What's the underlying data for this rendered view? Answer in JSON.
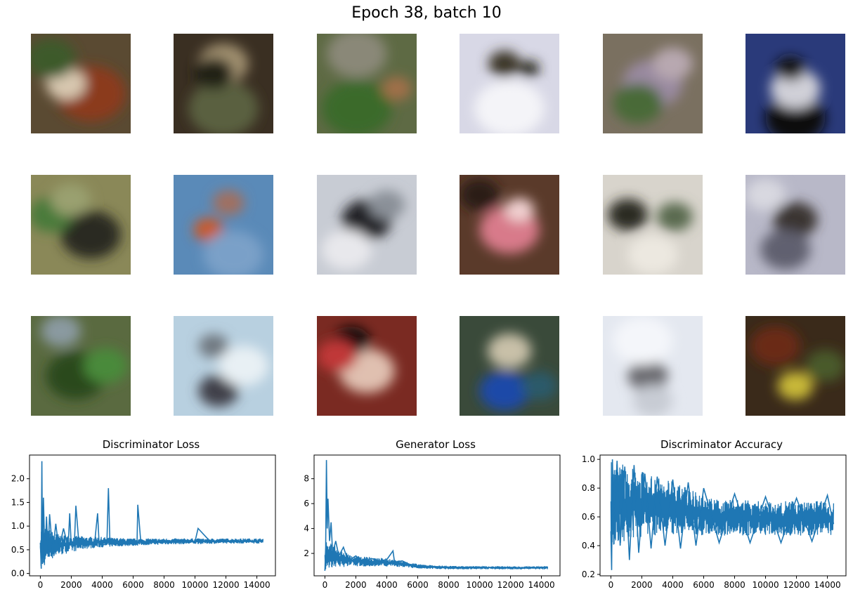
{
  "title": "Epoch 38, batch 10",
  "samples": {
    "rows": 3,
    "cols": 6,
    "tiles": [
      {
        "bg": "#5a4a32",
        "blobs": [
          [
            "#8b3a1a",
            0.6,
            0.6,
            0.35
          ],
          [
            "#d8c8b0",
            0.35,
            0.5,
            0.2
          ],
          [
            "#3d5a2a",
            0.2,
            0.25,
            0.25
          ]
        ]
      },
      {
        "bg": "#3a2f22",
        "blobs": [
          [
            "#5a6040",
            0.5,
            0.75,
            0.35
          ],
          [
            "#a09070",
            0.5,
            0.3,
            0.25
          ],
          [
            "#202018",
            0.4,
            0.4,
            0.2
          ]
        ]
      },
      {
        "bg": "#5e6a44",
        "blobs": [
          [
            "#3a6a2a",
            0.4,
            0.75,
            0.35
          ],
          [
            "#8a8878",
            0.4,
            0.2,
            0.3
          ],
          [
            "#a07048",
            0.8,
            0.55,
            0.15
          ]
        ]
      },
      {
        "bg": "#d8d8e6",
        "blobs": [
          [
            "#f4f4f8",
            0.5,
            0.75,
            0.35
          ],
          [
            "#3a3428",
            0.45,
            0.3,
            0.16
          ],
          [
            "#202018",
            0.7,
            0.35,
            0.1
          ]
        ]
      },
      {
        "bg": "#7a7060",
        "blobs": [
          [
            "#9a8aa0",
            0.5,
            0.5,
            0.3
          ],
          [
            "#4a6a38",
            0.35,
            0.7,
            0.25
          ],
          [
            "#b8a8b0",
            0.7,
            0.3,
            0.2
          ]
        ]
      },
      {
        "bg": "#2a3a7a",
        "blobs": [
          [
            "#101010",
            0.5,
            0.85,
            0.3
          ],
          [
            "#d0d0d8",
            0.5,
            0.55,
            0.25
          ],
          [
            "#181818",
            0.45,
            0.35,
            0.15
          ]
        ]
      },
      {
        "bg": "#8a8858",
        "blobs": [
          [
            "#2a2a20",
            0.6,
            0.6,
            0.3
          ],
          [
            "#4a7a3a",
            0.2,
            0.4,
            0.22
          ],
          [
            "#9aa070",
            0.4,
            0.25,
            0.2
          ]
        ]
      },
      {
        "bg": "#5a8ab8",
        "blobs": [
          [
            "#c85a2a",
            0.35,
            0.55,
            0.15
          ],
          [
            "#a07060",
            0.55,
            0.28,
            0.16
          ],
          [
            "#7aa0c8",
            0.6,
            0.8,
            0.3
          ]
        ]
      },
      {
        "bg": "#c8ccd4",
        "blobs": [
          [
            "#202428",
            0.5,
            0.45,
            0.25
          ],
          [
            "#e8e8ec",
            0.3,
            0.75,
            0.25
          ],
          [
            "#8a9098",
            0.7,
            0.3,
            0.18
          ]
        ]
      },
      {
        "bg": "#5a3a2a",
        "blobs": [
          [
            "#d87a8a",
            0.5,
            0.55,
            0.3
          ],
          [
            "#f0d0d0",
            0.6,
            0.35,
            0.15
          ],
          [
            "#2a1a14",
            0.2,
            0.2,
            0.2
          ]
        ]
      },
      {
        "bg": "#d8d4cc",
        "blobs": [
          [
            "#2a2a22",
            0.25,
            0.4,
            0.2
          ],
          [
            "#5a6a50",
            0.72,
            0.42,
            0.18
          ],
          [
            "#ece8e0",
            0.5,
            0.8,
            0.25
          ]
        ]
      },
      {
        "bg": "#b8b8c8",
        "blobs": [
          [
            "#3a3430",
            0.5,
            0.45,
            0.22
          ],
          [
            "#606070",
            0.4,
            0.75,
            0.25
          ],
          [
            "#d8d8e0",
            0.2,
            0.2,
            0.2
          ]
        ]
      },
      {
        "bg": "#5a6a40",
        "blobs": [
          [
            "#2a4a1a",
            0.45,
            0.6,
            0.3
          ],
          [
            "#8a9aa0",
            0.3,
            0.15,
            0.2
          ],
          [
            "#4a8a3a",
            0.75,
            0.5,
            0.22
          ]
        ]
      },
      {
        "bg": "#b8d0e0",
        "blobs": [
          [
            "#404048",
            0.45,
            0.75,
            0.2
          ],
          [
            "#707880",
            0.4,
            0.3,
            0.15
          ],
          [
            "#e8f0f4",
            0.7,
            0.5,
            0.25
          ]
        ]
      },
      {
        "bg": "#7a2a22",
        "blobs": [
          [
            "#e0c0b0",
            0.5,
            0.55,
            0.28
          ],
          [
            "#101010",
            0.35,
            0.25,
            0.18
          ],
          [
            "#c03838",
            0.2,
            0.4,
            0.2
          ]
        ]
      },
      {
        "bg": "#3a4a3a",
        "blobs": [
          [
            "#1a4aa8",
            0.45,
            0.75,
            0.25
          ],
          [
            "#c8c0a8",
            0.5,
            0.35,
            0.22
          ],
          [
            "#2a5a6a",
            0.8,
            0.7,
            0.18
          ]
        ]
      },
      {
        "bg": "#e4e8f0",
        "blobs": [
          [
            "#6a6a70",
            0.45,
            0.6,
            0.2
          ],
          [
            "#c8ccd4",
            0.5,
            0.85,
            0.2
          ],
          [
            "#f4f6fa",
            0.4,
            0.25,
            0.3
          ]
        ]
      },
      {
        "bg": "#3a2a1a",
        "blobs": [
          [
            "#c8b838",
            0.5,
            0.7,
            0.18
          ],
          [
            "#6a2a18",
            0.3,
            0.3,
            0.25
          ],
          [
            "#4a5a2a",
            0.8,
            0.5,
            0.2
          ]
        ]
      }
    ]
  },
  "chart_data": [
    {
      "type": "line",
      "title": "Discriminator Loss",
      "xlabel": "",
      "ylabel": "",
      "xlim": [
        -700,
        15200
      ],
      "ylim": [
        -0.05,
        2.5
      ],
      "xticks": [
        0,
        2000,
        4000,
        6000,
        8000,
        10000,
        12000,
        14000
      ],
      "yticks": [
        0.0,
        0.5,
        1.0,
        1.5,
        2.0
      ],
      "ytick_labels": [
        "0.0",
        "0.5",
        "1.0",
        "1.5",
        "2.0"
      ],
      "color": "#1f77b4",
      "series": [
        {
          "x": [
            0,
            60,
            100,
            140,
            200,
            300,
            400,
            500,
            600,
            800,
            1000,
            1200,
            1500,
            1800,
            1900,
            2000,
            2200,
            2300,
            2500,
            3000,
            3500,
            3700,
            3800,
            4000,
            4300,
            4400,
            4500,
            5000,
            5500,
            6000,
            6250,
            6300,
            6500,
            7000,
            8000,
            9000,
            10000,
            10200,
            11000,
            12000,
            13000,
            14000,
            14400
          ],
          "y": [
            0.65,
            0.1,
            2.37,
            0.2,
            1.6,
            0.3,
            1.2,
            0.4,
            1.25,
            0.45,
            1.05,
            0.5,
            0.95,
            0.55,
            1.27,
            0.6,
            0.6,
            1.43,
            0.62,
            0.6,
            0.62,
            1.27,
            0.62,
            0.6,
            0.62,
            1.8,
            0.62,
            0.63,
            0.62,
            0.63,
            0.62,
            1.45,
            0.64,
            0.65,
            0.66,
            0.66,
            0.67,
            0.95,
            0.67,
            0.67,
            0.68,
            0.68,
            0.69
          ]
        }
      ],
      "band": {
        "x": [
          0,
          500,
          1000,
          2000,
          3000,
          4000,
          5000,
          6000,
          7000,
          8000,
          10000,
          12000,
          14400
        ],
        "lo": [
          0.05,
          0.25,
          0.35,
          0.45,
          0.52,
          0.55,
          0.57,
          0.58,
          0.6,
          0.61,
          0.62,
          0.63,
          0.63
        ],
        "hi": [
          1.0,
          0.95,
          0.85,
          0.8,
          0.78,
          0.77,
          0.75,
          0.74,
          0.74,
          0.74,
          0.74,
          0.74,
          0.74
        ]
      }
    },
    {
      "type": "line",
      "title": "Generator Loss",
      "xlabel": "",
      "ylabel": "",
      "xlim": [
        -700,
        15200
      ],
      "ylim": [
        0.2,
        9.9
      ],
      "xticks": [
        0,
        2000,
        4000,
        6000,
        8000,
        10000,
        12000,
        14000
      ],
      "yticks": [
        2,
        4,
        6,
        8
      ],
      "ytick_labels": [
        "2",
        "4",
        "6",
        "8"
      ],
      "color": "#1f77b4",
      "series": [
        {
          "x": [
            0,
            50,
            100,
            150,
            200,
            300,
            400,
            500,
            700,
            900,
            1200,
            1500,
            2000,
            2500,
            3000,
            3500,
            4000,
            4400,
            4500,
            5000,
            5500,
            6000,
            7000,
            8000,
            9000,
            10000,
            11000,
            12000,
            13000,
            14000,
            14400
          ],
          "y": [
            0.6,
            2.5,
            9.5,
            4.0,
            6.4,
            3.0,
            4.5,
            2.0,
            3.0,
            1.8,
            2.5,
            1.4,
            1.8,
            1.3,
            1.6,
            1.4,
            1.5,
            2.2,
            1.3,
            1.4,
            1.1,
            1.0,
            0.95,
            0.9,
            0.88,
            0.87,
            0.86,
            0.86,
            0.85,
            0.85,
            0.86
          ]
        }
      ],
      "band": {
        "x": [
          0,
          500,
          1000,
          2000,
          3000,
          4000,
          5000,
          6000,
          7000,
          8000,
          10000,
          12000,
          14400
        ],
        "lo": [
          0.5,
          0.9,
          0.9,
          0.95,
          0.95,
          0.95,
          0.9,
          0.8,
          0.75,
          0.72,
          0.72,
          0.72,
          0.72
        ],
        "hi": [
          3.0,
          2.8,
          2.2,
          1.8,
          1.7,
          1.6,
          1.4,
          1.15,
          1.05,
          1.0,
          0.98,
          0.97,
          0.97
        ]
      }
    },
    {
      "type": "line",
      "title": "Discriminator Accuracy",
      "xlabel": "",
      "ylabel": "",
      "xlim": [
        -700,
        15200
      ],
      "ylim": [
        0.19,
        1.03
      ],
      "xticks": [
        0,
        2000,
        4000,
        6000,
        8000,
        10000,
        12000,
        14000
      ],
      "yticks": [
        0.2,
        0.4,
        0.6,
        0.8,
        1.0
      ],
      "ytick_labels": [
        "0.2",
        "0.4",
        "0.6",
        "0.8",
        "1.0"
      ],
      "color": "#1f77b4",
      "series": [
        {
          "x": [
            0,
            50,
            100,
            200,
            400,
            600,
            900,
            1200,
            1500,
            1800,
            2200,
            2600,
            3000,
            3500,
            4000,
            4500,
            5000,
            5500,
            6000,
            7000,
            8000,
            9000,
            10000,
            11000,
            12000,
            13000,
            14000,
            14400
          ],
          "y": [
            0.5,
            0.23,
            1.0,
            0.45,
            0.99,
            0.4,
            0.95,
            0.3,
            0.96,
            0.35,
            0.9,
            0.38,
            0.88,
            0.4,
            0.86,
            0.38,
            0.84,
            0.4,
            0.8,
            0.42,
            0.76,
            0.42,
            0.74,
            0.42,
            0.73,
            0.43,
            0.75,
            0.55
          ]
        }
      ],
      "band": {
        "x": [
          0,
          500,
          1000,
          2000,
          3000,
          4000,
          5000,
          6000,
          7000,
          8000,
          10000,
          12000,
          14400
        ],
        "lo": [
          0.35,
          0.4,
          0.42,
          0.45,
          0.47,
          0.48,
          0.48,
          0.47,
          0.47,
          0.47,
          0.47,
          0.47,
          0.47
        ],
        "hi": [
          1.0,
          0.98,
          0.95,
          0.92,
          0.88,
          0.85,
          0.8,
          0.75,
          0.72,
          0.72,
          0.71,
          0.71,
          0.71
        ]
      }
    }
  ]
}
